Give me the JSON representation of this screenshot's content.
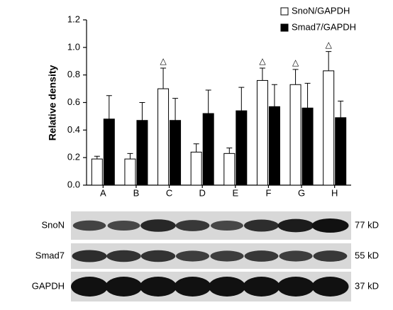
{
  "chart_data": {
    "type": "bar",
    "ylabel": "Relative density",
    "categories": [
      "A",
      "B",
      "C",
      "D",
      "E",
      "F",
      "G",
      "H"
    ],
    "series": [
      {
        "name": "SnoN/GAPDH",
        "color": "#ffffff",
        "values": [
          0.19,
          0.19,
          0.7,
          0.24,
          0.23,
          0.76,
          0.73,
          0.83
        ],
        "errors": [
          0.02,
          0.04,
          0.15,
          0.06,
          0.04,
          0.09,
          0.11,
          0.14
        ],
        "annotations": [
          null,
          null,
          "△",
          null,
          null,
          "△",
          "△",
          "△"
        ]
      },
      {
        "name": "Smad7/GAPDH",
        "color": "#000000",
        "values": [
          0.48,
          0.47,
          0.47,
          0.52,
          0.54,
          0.57,
          0.56,
          0.49
        ],
        "errors": [
          0.17,
          0.13,
          0.16,
          0.17,
          0.17,
          0.16,
          0.18,
          0.12
        ]
      }
    ],
    "ylim": [
      0,
      1.2
    ],
    "yticks": [
      {
        "value": 0,
        "label": "0.0"
      },
      0.2,
      0.4,
      0.6,
      0.8,
      {
        "value": 1,
        "label": "1.0"
      },
      1.2
    ],
    "legend": "upper right"
  },
  "blot": {
    "rows": [
      {
        "label": "SnoN",
        "size": "77 kD"
      },
      {
        "label": "Smad7",
        "size": "55 kD"
      },
      {
        "label": "GAPDH",
        "size": "37 kD"
      }
    ]
  }
}
